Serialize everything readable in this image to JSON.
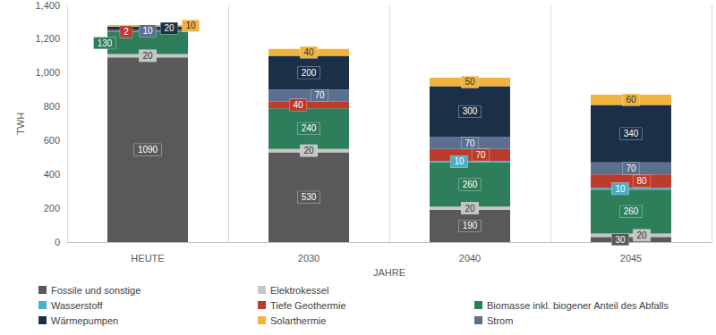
{
  "chart_data": {
    "type": "bar",
    "stacked": true,
    "data_labels": true,
    "grid": true,
    "legend": "bottom",
    "x_label": "JAHRE",
    "y_label": "TWH",
    "categories": [
      "HEUTE",
      "2030",
      "2040",
      "2045"
    ],
    "ylim": [
      0,
      1400
    ],
    "yticks": [
      0,
      200,
      400,
      600,
      800,
      1000,
      1200,
      1400
    ],
    "series": [
      {
        "name": "Fossile und sonstige",
        "color": "#595959",
        "values": [
          1090,
          530,
          190,
          30
        ]
      },
      {
        "name": "Elektrokessel",
        "color": "#c6c6c6",
        "values": [
          20,
          20,
          20,
          20
        ]
      },
      {
        "name": "Biomasse inkl. biogener Anteil des Abfalls",
        "color": "#2e7d5b",
        "values": [
          130,
          240,
          260,
          260
        ]
      },
      {
        "name": "Wasserstoff",
        "color": "#4aaec8",
        "values": [
          null,
          null,
          10,
          10
        ]
      },
      {
        "name": "Tiefe Geothermie",
        "color": "#bd3b2a",
        "values": [
          2,
          40,
          70,
          80
        ]
      },
      {
        "name": "Strom",
        "color": "#5b6f8e",
        "values": [
          10,
          70,
          70,
          70
        ]
      },
      {
        "name": "Wärmepumpen",
        "color": "#1b2f46",
        "values": [
          20,
          200,
          300,
          340
        ]
      },
      {
        "name": "Solarthermie",
        "color": "#f0b33e",
        "values": [
          10,
          40,
          50,
          60
        ]
      }
    ]
  }
}
